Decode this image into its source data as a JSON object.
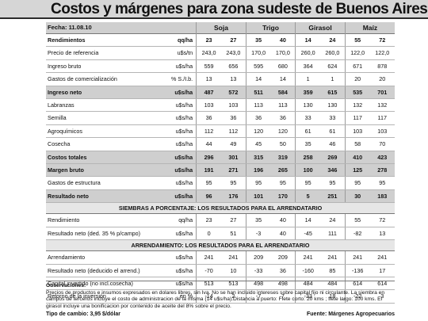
{
  "title": "Costos y márgenes para zona sudeste de Buenos Aires",
  "header": {
    "date": "Fecha: 11.08.10",
    "crops": [
      "Soja",
      "Trigo",
      "Girasol",
      "Maíz"
    ]
  },
  "rows": [
    {
      "label": "Rendimientos",
      "unit": "qq/ha",
      "v": [
        "23",
        "27",
        "35",
        "40",
        "14",
        "24",
        "55",
        "72"
      ],
      "style": "bold"
    },
    {
      "label": "Precio de referencia",
      "unit": "u$s/tn",
      "v": [
        "243,0",
        "243,0",
        "170,0",
        "170,0",
        "260,0",
        "260,0",
        "122,0",
        "122,0"
      ]
    },
    {
      "label": "Ingreso bruto",
      "unit": "u$s/ha",
      "v": [
        "559",
        "656",
        "595",
        "680",
        "364",
        "624",
        "671",
        "878"
      ]
    },
    {
      "label": "Gastos de comercialización",
      "unit": "% S./I.b.",
      "v": [
        "13",
        "13",
        "14",
        "14",
        "1",
        "1",
        "20",
        "20"
      ]
    },
    {
      "label": "Ingreso neto",
      "unit": "u$s/ha",
      "v": [
        "487",
        "572",
        "511",
        "584",
        "359",
        "615",
        "535",
        "701"
      ],
      "style": "bold shade"
    },
    {
      "label": "Labranzas",
      "unit": "u$s/ha",
      "v": [
        "103",
        "103",
        "113",
        "113",
        "130",
        "130",
        "132",
        "132"
      ]
    },
    {
      "label": "Semilla",
      "unit": "u$s/ha",
      "v": [
        "36",
        "36",
        "36",
        "36",
        "33",
        "33",
        "117",
        "117"
      ]
    },
    {
      "label": "Agroquímicos",
      "unit": "u$s/ha",
      "v": [
        "112",
        "112",
        "120",
        "120",
        "61",
        "61",
        "103",
        "103"
      ]
    },
    {
      "label": "Cosecha",
      "unit": "u$s/ha",
      "v": [
        "44",
        "49",
        "45",
        "50",
        "35",
        "46",
        "58",
        "70"
      ]
    },
    {
      "label": "Costos totales",
      "unit": "u$s/ha",
      "v": [
        "296",
        "301",
        "315",
        "319",
        "258",
        "269",
        "410",
        "423"
      ],
      "style": "bold shade"
    },
    {
      "label": "Margen bruto",
      "unit": "u$s/ha",
      "v": [
        "191",
        "271",
        "196",
        "265",
        "100",
        "346",
        "125",
        "278"
      ],
      "style": "bold shade"
    },
    {
      "label": "Gastos de estructura",
      "unit": "u$s/ha",
      "v": [
        "95",
        "95",
        "95",
        "95",
        "95",
        "95",
        "95",
        "95"
      ]
    },
    {
      "label": "Resultado neto",
      "unit": "u$s/ha",
      "v": [
        "96",
        "176",
        "101",
        "170",
        "5",
        "251",
        "30",
        "183"
      ],
      "style": "bold shade"
    }
  ],
  "section2": {
    "banner": "SIEMBRAS A PORCENTAJE: LOS RESULTADOS PARA EL ARRENDATARIO",
    "rows": [
      {
        "label": "Rendimiento",
        "unit": "qq/ha",
        "v": [
          "23",
          "27",
          "35",
          "40",
          "14",
          "24",
          "55",
          "72"
        ]
      },
      {
        "label": "Resultado neto (ded. 35 % p/campo)",
        "unit": "u$s/ha",
        "v": [
          "0",
          "51",
          "-3",
          "40",
          "-45",
          "111",
          "-82",
          "13"
        ]
      }
    ]
  },
  "section3": {
    "banner": "ARRENDAMIENTO: LOS RESULTADOS PARA EL ARRENDATARIO",
    "rows": [
      {
        "label": "Arrendamiento",
        "unit": "u$s/ha",
        "v": [
          "241",
          "241",
          "209",
          "209",
          "241",
          "241",
          "241",
          "241"
        ]
      },
      {
        "label": "Resultado neto (deducido el arrend.)",
        "unit": "u$s/ha",
        "v": [
          "-70",
          "10",
          "-33",
          "36",
          "-160",
          "85",
          "-136",
          "17"
        ]
      },
      {
        "label": "Capital invertido (no incl.cosecha)",
        "unit": "u$s/ha",
        "v": [
          "513",
          "513",
          "498",
          "498",
          "484",
          "484",
          "614",
          "614"
        ]
      },
      {
        "label": "Retorno de la inversión",
        "unit": "en %",
        "v": [
          "-14",
          "2",
          "-7",
          "7",
          "-33",
          "18",
          "-22",
          "3"
        ]
      }
    ]
  },
  "observaciones": {
    "heading": "Observaciones:",
    "text": "Precios de productos e insumos expresados en dolares libres, sin Iva. No se han incluido intereses sobre capital fijo ni circulante. La siembra en campos de terceros incluye el costo de administracion de la misma (14 u$s/ha).Distancia a puerto: Flete corto: 20 kms ; flete largo: 100 kms. El girasol incluye una bonificacion por contenido de aceite del 8% sobre el precio."
  },
  "footer": {
    "exchange": "Tipo de cambio: 3,95 $/dólar",
    "source": "Fuente: Márgenes Agropecuarios"
  }
}
